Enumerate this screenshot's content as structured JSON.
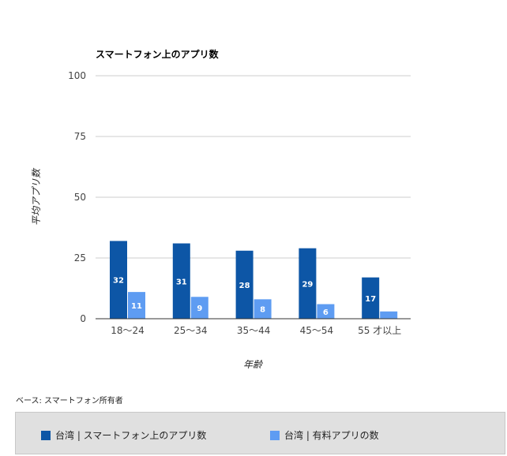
{
  "chart_data": {
    "type": "bar",
    "title": "スマートフォン上のアプリ数",
    "xlabel": "年齢",
    "ylabel": "平均アプリ数",
    "ylim": [
      0,
      100
    ],
    "yticks": [
      0,
      25,
      50,
      75,
      100
    ],
    "grid": true,
    "legend_position": "bottom",
    "categories": [
      "18〜24",
      "25〜34",
      "35〜44",
      "45〜54",
      "55 才以上"
    ],
    "series": [
      {
        "name": "台湾 | スマートフォン上のアプリ数",
        "color": "#0d56a6",
        "values": [
          32,
          31,
          28,
          29,
          17
        ],
        "labels": [
          "32",
          "31",
          "28",
          "29",
          "17"
        ]
      },
      {
        "name": "台湾 | 有料アプリの数",
        "color": "#5e9cf2",
        "values": [
          11,
          9,
          8,
          6,
          3
        ],
        "labels": [
          "11",
          "9",
          "8",
          "6",
          ""
        ]
      }
    ],
    "footnote": "ベース: スマートフォン所有者"
  }
}
